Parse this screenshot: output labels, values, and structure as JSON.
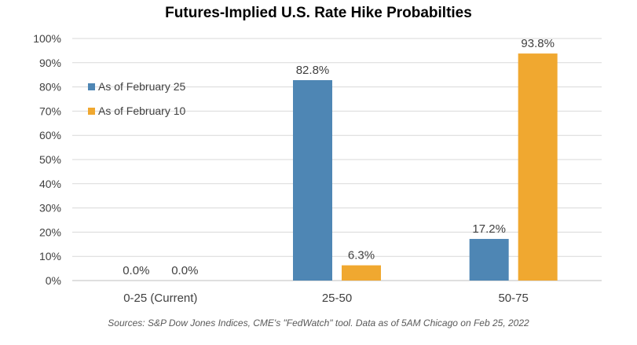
{
  "chart_data": {
    "type": "bar",
    "title": "Futures-Implied U.S. Rate Hike Probabilties",
    "categories": [
      "0-25 (Current)",
      "25-50",
      "50-75"
    ],
    "series": [
      {
        "name": "As of February 25",
        "values": [
          0.0,
          82.8,
          17.2
        ],
        "labels": [
          "0.0%",
          "82.8%",
          "17.2%"
        ],
        "color": "#4E86B4"
      },
      {
        "name": "As of February 10",
        "values": [
          0.0,
          6.3,
          93.8
        ],
        "labels": [
          "0.0%",
          "6.3%",
          "93.8%"
        ],
        "color": "#F0A830"
      }
    ],
    "ylim": [
      0,
      100
    ],
    "yticks": [
      "0%",
      "10%",
      "20%",
      "30%",
      "40%",
      "50%",
      "60%",
      "70%",
      "80%",
      "90%",
      "100%"
    ],
    "grid": true,
    "legend_position": "top-left",
    "xlabel": "",
    "ylabel": "",
    "source": "Sources: S&P Dow Jones Indices, CME's \"FedWatch\" tool. Data as of 5AM Chicago on Feb 25, 2022"
  }
}
